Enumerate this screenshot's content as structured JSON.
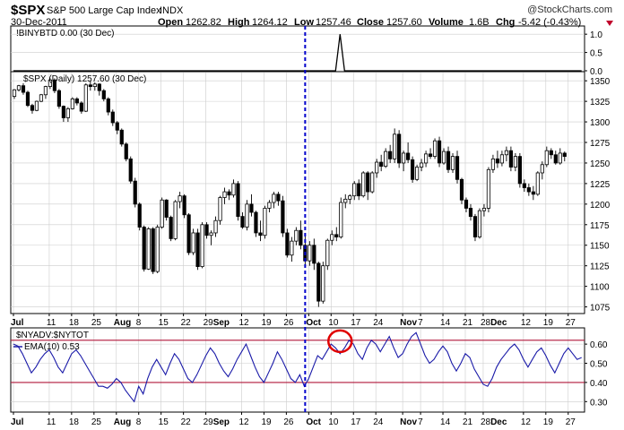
{
  "header": {
    "symbol": "$SPX",
    "name": "S&P 500 Large Cap Index",
    "exchange": "INDX",
    "watermark": "@StockCharts.com",
    "date": "30-Dec-2011",
    "open_label": "Open",
    "open": "1262.82",
    "high_label": "High",
    "high": "1264.12",
    "low_label": "Low",
    "low": "1257.46",
    "close_label": "Close",
    "close": "1257.60",
    "volume_label": "Volume",
    "volume": "1.6B",
    "chg_label": "Chg",
    "chg": "-5.42 (-0.43%)"
  },
  "colors": {
    "candle": "#000000",
    "ema_line": "#1a1aa8",
    "threshold_line": "#b0173a",
    "marker_line": "#0000cc",
    "circle": "#e00000",
    "down_arrow": "#c0002b",
    "grid": "#cccccc"
  },
  "x_axis": {
    "labels": [
      {
        "text": "Jul",
        "day": 0,
        "bold": true
      },
      {
        "text": "11",
        "day": 8
      },
      {
        "text": "18",
        "day": 13
      },
      {
        "text": "25",
        "day": 18
      },
      {
        "text": "Aug",
        "day": 23,
        "bold": true
      },
      {
        "text": "8",
        "day": 28
      },
      {
        "text": "15",
        "day": 33
      },
      {
        "text": "22",
        "day": 38
      },
      {
        "text": "29Sep",
        "day": 43,
        "bold_suffix": "Sep"
      },
      {
        "text": "12",
        "day": 51
      },
      {
        "text": "19",
        "day": 56
      },
      {
        "text": "26",
        "day": 61
      },
      {
        "text": "Oct",
        "day": 66,
        "bold": true
      },
      {
        "text": "10",
        "day": 71
      },
      {
        "text": "17",
        "day": 76
      },
      {
        "text": "24",
        "day": 81
      },
      {
        "text": "Nov",
        "day": 87,
        "bold": true
      },
      {
        "text": "7",
        "day": 91
      },
      {
        "text": "14",
        "day": 96
      },
      {
        "text": "21",
        "day": 101
      },
      {
        "text": "28Dec",
        "day": 105,
        "bold_suffix": "Dec"
      },
      {
        "text": "12",
        "day": 114
      },
      {
        "text": "19",
        "day": 119
      },
      {
        "text": "27",
        "day": 124
      }
    ],
    "marker_day": 65
  },
  "chart_data": [
    {
      "type": "line",
      "panel": "indicator",
      "title": "!BINYBTD 0.00 (30 Dec)",
      "ylim": [
        0,
        1.2
      ],
      "yticks": [
        "1.0",
        "0.5",
        "0.0"
      ],
      "ytick_values": [
        1.0,
        0.5,
        0.0
      ],
      "grid": true,
      "x": [
        0,
        72,
        73,
        74,
        127
      ],
      "values": [
        0,
        0,
        1,
        0,
        0
      ]
    },
    {
      "type": "candlestick",
      "panel": "price",
      "title": "$SPX (Daily) 1257.60 (30 Dec)",
      "ylim": [
        1068,
        1360
      ],
      "yticks": [
        "1350",
        "1325",
        "1300",
        "1275",
        "1250",
        "1225",
        "1200",
        "1175",
        "1150",
        "1125",
        "1100",
        "1075"
      ],
      "ytick_values": [
        1350,
        1325,
        1300,
        1275,
        1250,
        1225,
        1200,
        1175,
        1150,
        1125,
        1100,
        1075
      ],
      "grid": true,
      "candles": [
        [
          1331,
          1340,
          1328,
          1339
        ],
        [
          1339,
          1345,
          1337,
          1344
        ],
        [
          1344,
          1347,
          1333,
          1336
        ],
        [
          1336,
          1338,
          1318,
          1320
        ],
        [
          1320,
          1322,
          1310,
          1314
        ],
        [
          1314,
          1326,
          1313,
          1325
        ],
        [
          1325,
          1334,
          1324,
          1333
        ],
        [
          1333,
          1344,
          1328,
          1343
        ],
        [
          1343,
          1353,
          1340,
          1351
        ],
        [
          1351,
          1353,
          1335,
          1338
        ],
        [
          1338,
          1340,
          1316,
          1319
        ],
        [
          1319,
          1320,
          1300,
          1305
        ],
        [
          1305,
          1318,
          1300,
          1316
        ],
        [
          1316,
          1330,
          1315,
          1328
        ],
        [
          1328,
          1330,
          1320,
          1323
        ],
        [
          1323,
          1325,
          1310,
          1313
        ],
        [
          1313,
          1347,
          1312,
          1345
        ],
        [
          1345,
          1350,
          1338,
          1343
        ],
        [
          1343,
          1348,
          1338,
          1346
        ],
        [
          1346,
          1347,
          1332,
          1338
        ],
        [
          1338,
          1340,
          1325,
          1328
        ],
        [
          1328,
          1330,
          1308,
          1312
        ],
        [
          1312,
          1315,
          1295,
          1299
        ],
        [
          1299,
          1301,
          1285,
          1290
        ],
        [
          1290,
          1292,
          1270,
          1273
        ],
        [
          1273,
          1275,
          1252,
          1255
        ],
        [
          1255,
          1258,
          1225,
          1228
        ],
        [
          1228,
          1232,
          1196,
          1200
        ],
        [
          1200,
          1202,
          1168,
          1172
        ],
        [
          1172,
          1174,
          1118,
          1121
        ],
        [
          1121,
          1172,
          1120,
          1170
        ],
        [
          1170,
          1172,
          1115,
          1118
        ],
        [
          1118,
          1175,
          1116,
          1172
        ],
        [
          1172,
          1208,
          1170,
          1205
        ],
        [
          1205,
          1206,
          1180,
          1184
        ],
        [
          1184,
          1186,
          1155,
          1158
        ],
        [
          1158,
          1205,
          1156,
          1203
        ],
        [
          1203,
          1215,
          1195,
          1210
        ],
        [
          1210,
          1212,
          1183,
          1187
        ],
        [
          1187,
          1189,
          1138,
          1141
        ],
        [
          1141,
          1170,
          1138,
          1165
        ],
        [
          1165,
          1170,
          1120,
          1124
        ],
        [
          1124,
          1178,
          1122,
          1175
        ],
        [
          1175,
          1178,
          1158,
          1162
        ],
        [
          1162,
          1168,
          1150,
          1165
        ],
        [
          1165,
          1185,
          1160,
          1180
        ],
        [
          1180,
          1210,
          1175,
          1208
        ],
        [
          1208,
          1220,
          1200,
          1215
        ],
        [
          1215,
          1218,
          1205,
          1211
        ],
        [
          1211,
          1230,
          1208,
          1225
        ],
        [
          1225,
          1228,
          1180,
          1185
        ],
        [
          1185,
          1190,
          1170,
          1172
        ],
        [
          1172,
          1205,
          1168,
          1200
        ],
        [
          1200,
          1212,
          1185,
          1190
        ],
        [
          1190,
          1192,
          1160,
          1165
        ],
        [
          1165,
          1180,
          1155,
          1162
        ],
        [
          1162,
          1198,
          1158,
          1195
        ],
        [
          1195,
          1205,
          1190,
          1202
        ],
        [
          1202,
          1215,
          1195,
          1212
        ],
        [
          1212,
          1215,
          1198,
          1204
        ],
        [
          1204,
          1210,
          1160,
          1165
        ],
        [
          1165,
          1170,
          1135,
          1138
        ],
        [
          1138,
          1160,
          1130,
          1155
        ],
        [
          1155,
          1172,
          1150,
          1168
        ],
        [
          1168,
          1180,
          1145,
          1150
        ],
        [
          1150,
          1165,
          1125,
          1131
        ],
        [
          1131,
          1155,
          1125,
          1150
        ],
        [
          1150,
          1158,
          1120,
          1128
        ],
        [
          1128,
          1130,
          1075,
          1082
        ],
        [
          1082,
          1130,
          1079,
          1125
        ],
        [
          1125,
          1158,
          1120,
          1156
        ],
        [
          1156,
          1168,
          1150,
          1163
        ],
        [
          1163,
          1172,
          1155,
          1160
        ],
        [
          1160,
          1208,
          1158,
          1202
        ],
        [
          1202,
          1212,
          1195,
          1206
        ],
        [
          1206,
          1212,
          1200,
          1210
        ],
        [
          1210,
          1228,
          1205,
          1225
        ],
        [
          1225,
          1230,
          1205,
          1210
        ],
        [
          1210,
          1240,
          1208,
          1238
        ],
        [
          1238,
          1240,
          1205,
          1215
        ],
        [
          1215,
          1240,
          1213,
          1238
        ],
        [
          1238,
          1255,
          1232,
          1251
        ],
        [
          1251,
          1260,
          1240,
          1246
        ],
        [
          1246,
          1268,
          1244,
          1264
        ],
        [
          1264,
          1272,
          1250,
          1255
        ],
        [
          1255,
          1292,
          1250,
          1285
        ],
        [
          1285,
          1290,
          1244,
          1250
        ],
        [
          1250,
          1265,
          1240,
          1262
        ],
        [
          1262,
          1275,
          1250,
          1254
        ],
        [
          1254,
          1258,
          1226,
          1230
        ],
        [
          1230,
          1248,
          1228,
          1245
        ],
        [
          1245,
          1255,
          1240,
          1250
        ],
        [
          1250,
          1265,
          1245,
          1261
        ],
        [
          1261,
          1268,
          1255,
          1258
        ],
        [
          1258,
          1280,
          1255,
          1277
        ],
        [
          1277,
          1282,
          1245,
          1250
        ],
        [
          1250,
          1268,
          1248,
          1264
        ],
        [
          1264,
          1270,
          1238,
          1242
        ],
        [
          1242,
          1262,
          1238,
          1258
        ],
        [
          1258,
          1265,
          1225,
          1230
        ],
        [
          1230,
          1232,
          1200,
          1205
        ],
        [
          1205,
          1208,
          1190,
          1195
        ],
        [
          1195,
          1200,
          1180,
          1185
        ],
        [
          1185,
          1188,
          1155,
          1160
        ],
        [
          1160,
          1195,
          1158,
          1192
        ],
        [
          1192,
          1200,
          1185,
          1195
        ],
        [
          1195,
          1245,
          1190,
          1242
        ],
        [
          1242,
          1260,
          1238,
          1255
        ],
        [
          1255,
          1265,
          1244,
          1250
        ],
        [
          1250,
          1265,
          1246,
          1260
        ],
        [
          1260,
          1270,
          1252,
          1265
        ],
        [
          1265,
          1270,
          1240,
          1245
        ],
        [
          1245,
          1262,
          1240,
          1258
        ],
        [
          1258,
          1262,
          1220,
          1225
        ],
        [
          1225,
          1230,
          1215,
          1220
        ],
        [
          1220,
          1225,
          1210,
          1215
        ],
        [
          1215,
          1222,
          1205,
          1212
        ],
        [
          1212,
          1240,
          1210,
          1238
        ],
        [
          1238,
          1252,
          1230,
          1248
        ],
        [
          1248,
          1270,
          1245,
          1265
        ],
        [
          1265,
          1268,
          1255,
          1260
        ],
        [
          1260,
          1265,
          1248,
          1250
        ],
        [
          1250,
          1268,
          1248,
          1262
        ],
        [
          1262,
          1264,
          1252,
          1258
        ]
      ]
    },
    {
      "type": "line",
      "panel": "breadth",
      "title": "$NYADV:$NYTOT",
      "legend": "EMA(10) 0.53",
      "ylim": [
        0.25,
        0.68
      ],
      "yticks": [
        "0.60",
        "0.50",
        "0.40",
        "0.30"
      ],
      "ytick_values": [
        0.6,
        0.5,
        0.4,
        0.3
      ],
      "thresholds": [
        0.62,
        0.4
      ],
      "grid": true,
      "values": [
        0.6,
        0.59,
        0.55,
        0.5,
        0.45,
        0.48,
        0.52,
        0.55,
        0.57,
        0.53,
        0.48,
        0.45,
        0.5,
        0.55,
        0.57,
        0.54,
        0.5,
        0.46,
        0.42,
        0.38,
        0.38,
        0.37,
        0.39,
        0.42,
        0.4,
        0.36,
        0.33,
        0.3,
        0.38,
        0.34,
        0.42,
        0.48,
        0.52,
        0.48,
        0.44,
        0.5,
        0.55,
        0.52,
        0.47,
        0.42,
        0.4,
        0.44,
        0.49,
        0.54,
        0.58,
        0.55,
        0.5,
        0.46,
        0.43,
        0.47,
        0.52,
        0.56,
        0.6,
        0.54,
        0.48,
        0.43,
        0.4,
        0.45,
        0.5,
        0.56,
        0.52,
        0.47,
        0.42,
        0.4,
        0.44,
        0.38,
        0.42,
        0.48,
        0.54,
        0.52,
        0.56,
        0.6,
        0.58,
        0.55,
        0.58,
        0.62,
        0.6,
        0.55,
        0.52,
        0.58,
        0.62,
        0.6,
        0.56,
        0.6,
        0.64,
        0.58,
        0.53,
        0.55,
        0.6,
        0.64,
        0.66,
        0.6,
        0.54,
        0.5,
        0.52,
        0.56,
        0.59,
        0.56,
        0.5,
        0.46,
        0.5,
        0.55,
        0.53,
        0.47,
        0.43,
        0.39,
        0.38,
        0.42,
        0.48,
        0.52,
        0.55,
        0.58,
        0.6,
        0.57,
        0.52,
        0.48,
        0.52,
        0.56,
        0.58,
        0.54,
        0.49,
        0.45,
        0.5,
        0.55,
        0.58,
        0.55,
        0.52,
        0.53
      ],
      "circle_day": 73,
      "circle_value": 0.615
    }
  ]
}
